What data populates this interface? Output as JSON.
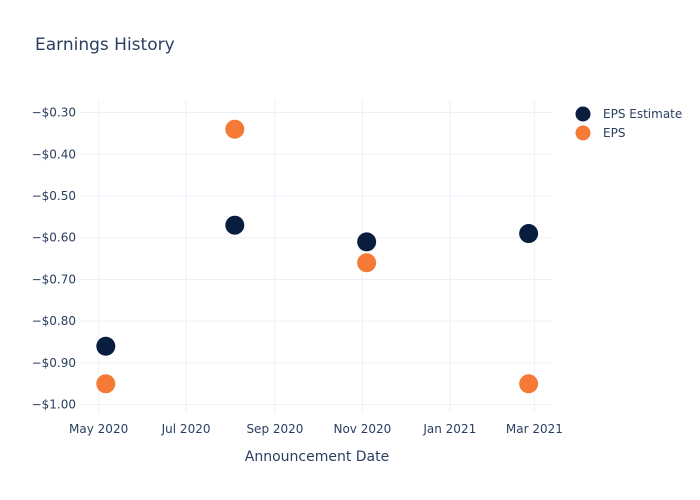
{
  "chart_data": {
    "type": "scatter",
    "title": "Earnings History",
    "xlabel": "Announcement Date",
    "ylabel": "",
    "x_ticks": [
      {
        "date": "2020-05-01",
        "label": "May 2020"
      },
      {
        "date": "2020-07-01",
        "label": "Jul 2020"
      },
      {
        "date": "2020-09-01",
        "label": "Sep 2020"
      },
      {
        "date": "2020-11-01",
        "label": "Nov 2020"
      },
      {
        "date": "2021-01-01",
        "label": "Jan 2021"
      },
      {
        "date": "2021-03-01",
        "label": "Mar 2021"
      }
    ],
    "xlim": [
      "2020-04-18",
      "2021-03-14"
    ],
    "ylim": [
      -1.02,
      -0.27
    ],
    "y_ticks": [
      {
        "value": -0.3,
        "label": "−$0.30"
      },
      {
        "value": -0.4,
        "label": "−$0.40"
      },
      {
        "value": -0.5,
        "label": "−$0.50"
      },
      {
        "value": -0.6,
        "label": "−$0.60"
      },
      {
        "value": -0.7,
        "label": "−$0.70"
      },
      {
        "value": -0.8,
        "label": "−$0.80"
      },
      {
        "value": -0.9,
        "label": "−$0.90"
      },
      {
        "value": -1.0,
        "label": "−$1.00"
      }
    ],
    "grid": true,
    "legend_position": "top-right",
    "series": [
      {
        "name": "EPS Estimate",
        "color": "#091d3f",
        "points": [
          {
            "x": "2020-05-06",
            "y": -0.86
          },
          {
            "x": "2020-08-04",
            "y": -0.57
          },
          {
            "x": "2020-11-04",
            "y": -0.61
          },
          {
            "x": "2021-02-25",
            "y": -0.59
          }
        ]
      },
      {
        "name": "EPS",
        "color": "#f47a35",
        "points": [
          {
            "x": "2020-05-06",
            "y": -0.95
          },
          {
            "x": "2020-08-04",
            "y": -0.34
          },
          {
            "x": "2020-11-04",
            "y": -0.66
          },
          {
            "x": "2021-02-25",
            "y": -0.95
          }
        ]
      }
    ]
  }
}
